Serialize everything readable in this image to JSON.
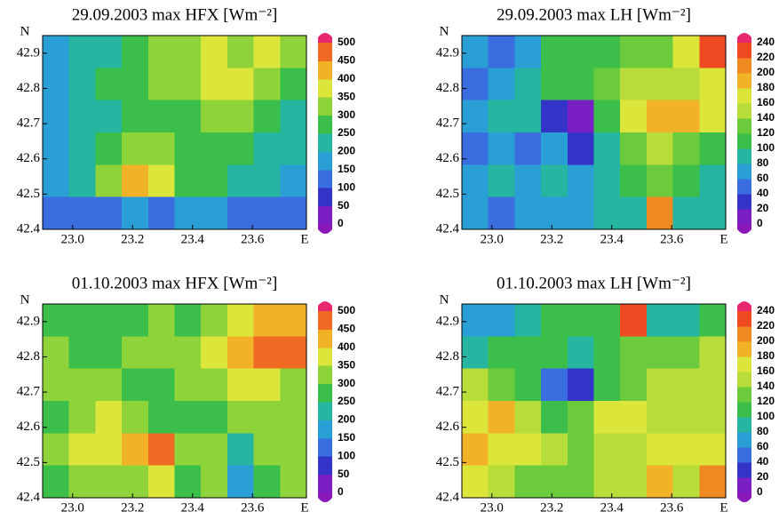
{
  "chart_data": [
    {
      "type": "heatmap",
      "title": "29.09.2003 max HFX [Wm⁻²]",
      "y_axis_label": "N",
      "x_axis_label": "E",
      "xlim": [
        22.9,
        23.78
      ],
      "xticks": [
        {
          "value": 23,
          "label": "23.0"
        },
        23.2,
        23.4,
        23.6
      ],
      "ylim": [
        42.4,
        42.95
      ],
      "yticks": [
        42.4,
        42.5,
        42.6,
        42.7,
        42.8,
        42.9
      ],
      "zlim": [
        0,
        500
      ],
      "zticks": [
        0,
        50,
        100,
        150,
        200,
        250,
        300,
        350,
        400,
        450,
        500
      ],
      "colors": [
        "#7a1fc4",
        "#3534c8",
        "#3a6ee0",
        "#2a9fd6",
        "#25b5a0",
        "#3cbf4a",
        "#8fd33a",
        "#dce53a",
        "#f2b228",
        "#ef6a22"
      ],
      "under_color": "#8a18b8",
      "over_color": "#e8286e",
      "z": [
        [
          150,
          200,
          200,
          250,
          300,
          300,
          350,
          300,
          350,
          300
        ],
        [
          150,
          200,
          250,
          250,
          300,
          300,
          350,
          350,
          300,
          250
        ],
        [
          150,
          200,
          200,
          250,
          250,
          250,
          300,
          300,
          250,
          200
        ],
        [
          150,
          200,
          250,
          300,
          300,
          250,
          250,
          250,
          200,
          200
        ],
        [
          150,
          200,
          300,
          400,
          350,
          250,
          250,
          200,
          200,
          150
        ],
        [
          100,
          100,
          100,
          150,
          100,
          150,
          150,
          100,
          100,
          100
        ]
      ]
    },
    {
      "type": "heatmap",
      "title": "29.09.2003 max  LH  [Wm⁻²]",
      "y_axis_label": "N",
      "x_axis_label": "E",
      "xlim": [
        22.9,
        23.78
      ],
      "xticks": [
        {
          "value": 23,
          "label": "23.0"
        },
        23.2,
        23.4,
        23.6
      ],
      "ylim": [
        42.4,
        42.95
      ],
      "yticks": [
        42.4,
        42.5,
        42.6,
        42.7,
        42.8,
        42.9
      ],
      "zlim": [
        0,
        240
      ],
      "zticks": [
        0,
        20,
        40,
        60,
        80,
        100,
        120,
        140,
        160,
        180,
        200,
        220,
        240
      ],
      "colors": [
        "#7a1fc4",
        "#3534c8",
        "#3a6ee0",
        "#2a9fd6",
        "#25b5a0",
        "#3cbf4a",
        "#6ccb3c",
        "#b8dc3a",
        "#dce53a",
        "#f2b228",
        "#ef8a22",
        "#ef4a22"
      ],
      "under_color": "#8a18b8",
      "over_color": "#e8286e",
      "z": [
        [
          60,
          40,
          60,
          100,
          100,
          100,
          120,
          120,
          160,
          220
        ],
        [
          40,
          60,
          80,
          100,
          100,
          120,
          140,
          140,
          140,
          160
        ],
        [
          60,
          80,
          80,
          20,
          0,
          100,
          160,
          180,
          180,
          160
        ],
        [
          40,
          60,
          40,
          60,
          20,
          80,
          120,
          140,
          120,
          100
        ],
        [
          60,
          80,
          60,
          80,
          60,
          80,
          100,
          120,
          100,
          80
        ],
        [
          60,
          40,
          60,
          60,
          60,
          80,
          80,
          200,
          80,
          80
        ]
      ]
    },
    {
      "type": "heatmap",
      "title": "01.10.2003 max HFX [Wm⁻²]",
      "y_axis_label": "N",
      "x_axis_label": "E",
      "xlim": [
        22.9,
        23.78
      ],
      "xticks": [
        {
          "value": 23,
          "label": "23.0"
        },
        23.2,
        23.4,
        23.6
      ],
      "ylim": [
        42.4,
        42.95
      ],
      "yticks": [
        42.4,
        42.5,
        42.6,
        42.7,
        42.8,
        42.9
      ],
      "zlim": [
        0,
        500
      ],
      "zticks": [
        0,
        50,
        100,
        150,
        200,
        250,
        300,
        350,
        400,
        450,
        500
      ],
      "colors": [
        "#7a1fc4",
        "#3534c8",
        "#3a6ee0",
        "#2a9fd6",
        "#25b5a0",
        "#3cbf4a",
        "#8fd33a",
        "#dce53a",
        "#f2b228",
        "#ef6a22"
      ],
      "under_color": "#8a18b8",
      "over_color": "#e8286e",
      "z": [
        [
          250,
          250,
          250,
          250,
          300,
          250,
          300,
          350,
          400,
          400
        ],
        [
          300,
          250,
          250,
          300,
          300,
          300,
          350,
          400,
          450,
          450
        ],
        [
          300,
          300,
          300,
          250,
          250,
          300,
          300,
          350,
          350,
          300
        ],
        [
          250,
          300,
          350,
          300,
          250,
          250,
          250,
          300,
          300,
          300
        ],
        [
          300,
          350,
          350,
          400,
          450,
          300,
          300,
          200,
          300,
          300
        ],
        [
          250,
          300,
          300,
          300,
          350,
          250,
          300,
          150,
          250,
          300
        ]
      ]
    },
    {
      "type": "heatmap",
      "title": "01.10.2003 max LH   [Wm⁻²]",
      "y_axis_label": "N",
      "x_axis_label": "E",
      "xlim": [
        22.9,
        23.78
      ],
      "xticks": [
        {
          "value": 23,
          "label": "23.0"
        },
        23.2,
        23.4,
        23.6
      ],
      "ylim": [
        42.4,
        42.95
      ],
      "yticks": [
        42.4,
        42.5,
        42.6,
        42.7,
        42.8,
        42.9
      ],
      "zlim": [
        0,
        240
      ],
      "zticks": [
        0,
        20,
        40,
        60,
        80,
        100,
        120,
        140,
        160,
        180,
        200,
        220,
        240
      ],
      "colors": [
        "#7a1fc4",
        "#3534c8",
        "#3a6ee0",
        "#2a9fd6",
        "#25b5a0",
        "#3cbf4a",
        "#6ccb3c",
        "#b8dc3a",
        "#dce53a",
        "#f2b228",
        "#ef8a22",
        "#ef4a22"
      ],
      "under_color": "#8a18b8",
      "over_color": "#e8286e",
      "z": [
        [
          60,
          60,
          80,
          100,
          100,
          100,
          220,
          80,
          80,
          100
        ],
        [
          80,
          100,
          100,
          100,
          80,
          100,
          120,
          120,
          120,
          140
        ],
        [
          140,
          120,
          100,
          40,
          20,
          100,
          120,
          140,
          140,
          140
        ],
        [
          160,
          180,
          140,
          100,
          120,
          160,
          160,
          140,
          140,
          140
        ],
        [
          180,
          160,
          160,
          140,
          120,
          140,
          140,
          160,
          160,
          160
        ],
        [
          160,
          140,
          120,
          120,
          120,
          140,
          140,
          180,
          140,
          200
        ]
      ]
    }
  ]
}
